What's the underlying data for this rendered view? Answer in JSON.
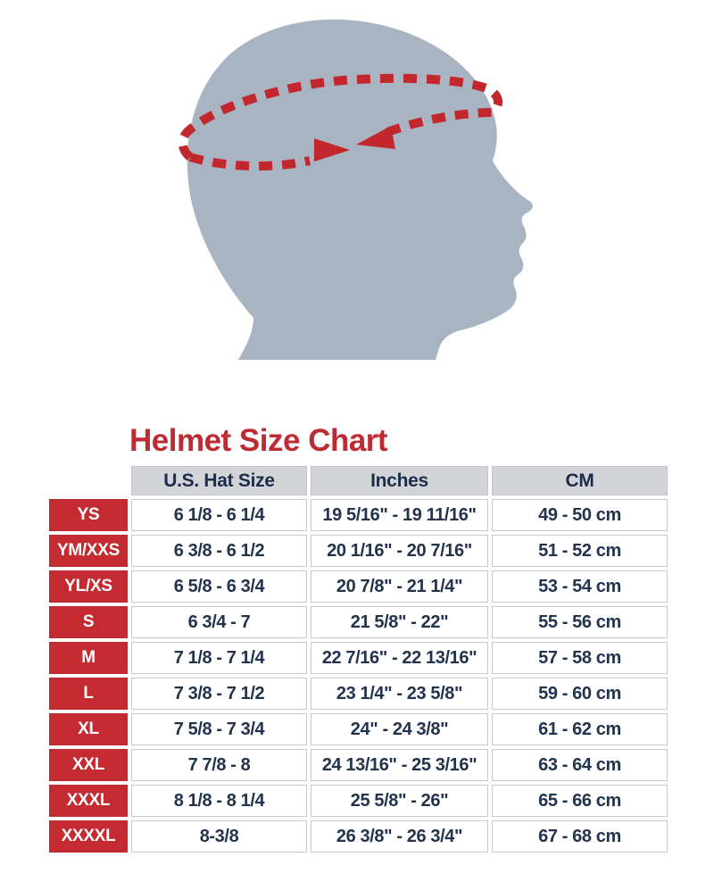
{
  "chart_data": {
    "type": "table",
    "title": "Helmet Size Chart",
    "columns": [
      "U.S. Hat Size",
      "Inches",
      "CM"
    ],
    "rows": [
      [
        "YS",
        "6 1/8 - 6 1/4",
        "19 5/16\" - 19 11/16\"",
        "49 - 50 cm"
      ],
      [
        "YM/XXS",
        "6 3/8 - 6 1/2",
        "20 1/16\" - 20 7/16\"",
        "51 - 52 cm"
      ],
      [
        "YL/XS",
        "6 5/8 - 6 3/4",
        "20 7/8\" - 21 1/4\"",
        "53 - 54 cm"
      ],
      [
        "S",
        "6 3/4 - 7",
        "21 5/8\" - 22\"",
        "55 - 56 cm"
      ],
      [
        "M",
        "7 1/8 - 7 1/4",
        "22 7/16\" - 22 13/16\"",
        "57 - 58 cm"
      ],
      [
        "L",
        "7 3/8 - 7 1/2",
        "23 1/4\" - 23 5/8\"",
        "59 - 60 cm"
      ],
      [
        "XL",
        "7 5/8 - 7 3/4",
        "24\" - 24 3/8\"",
        "61 - 62 cm"
      ],
      [
        "XXL",
        "7 7/8 - 8",
        "24 13/16\" - 25 3/16\"",
        "63 - 64 cm"
      ],
      [
        "XXXL",
        "8 1/8 - 8 1/4",
        "25 5/8\" - 26\"",
        "65 - 66 cm"
      ],
      [
        "XXXXL",
        "8-3/8",
        "26 3/8\" - 26 3/4\"",
        "67 - 68 cm"
      ]
    ],
    "layout": {
      "legend": "none",
      "grid": "cell-borders",
      "header_background": "#d2d4d7",
      "row_label_background": "#c42b31"
    }
  },
  "illustration": {
    "description_colors": {
      "head_silhouette": "#a9b4c2",
      "measuring_tape": "#c1272d"
    }
  }
}
